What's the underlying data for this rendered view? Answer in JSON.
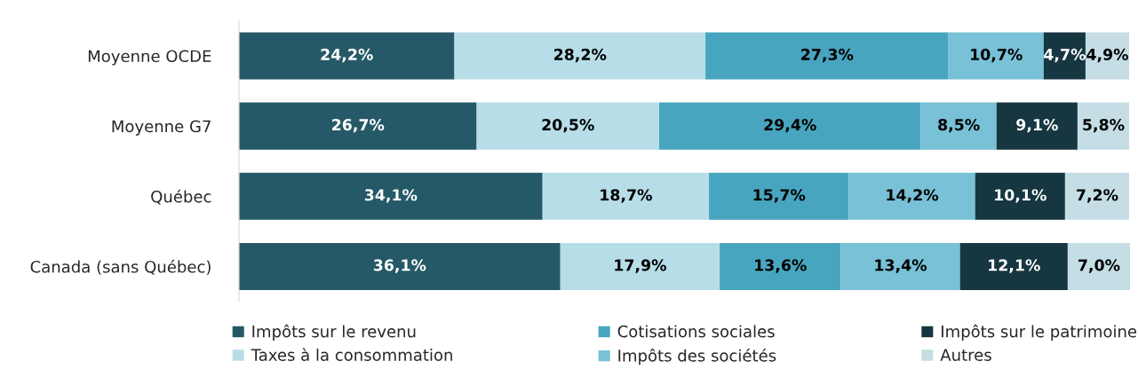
{
  "chart_data": {
    "type": "bar",
    "orientation": "horizontal",
    "stacked": true,
    "legend": "bottom",
    "categories": [
      "Moyenne OCDE",
      "Moyenne G7",
      "Québec",
      "Canada (sans Québec)"
    ],
    "series": [
      {
        "name": "Impôts sur le revenu",
        "color": "#265967",
        "values": [
          24.2,
          26.7,
          34.1,
          36.1
        ],
        "value_labels": [
          "24,2%",
          "26,7%",
          "34,1%",
          "36,1%"
        ]
      },
      {
        "name": "Taxes à la consommation",
        "color": "#b7dee8",
        "values": [
          28.2,
          20.5,
          18.7,
          17.9
        ],
        "value_labels": [
          "28,2%",
          "20,5%",
          "18,7%",
          "17,9%"
        ]
      },
      {
        "name": "Cotisations sociales",
        "color": "#48a5bf",
        "values": [
          27.3,
          29.4,
          15.7,
          13.6
        ],
        "value_labels": [
          "27,3%",
          "29,4%",
          "15,7%",
          "13,6%"
        ]
      },
      {
        "name": "Impôts des sociétés",
        "color": "#78c1d6",
        "values": [
          10.7,
          8.5,
          14.2,
          13.4
        ],
        "value_labels": [
          "10,7%",
          "8,5%",
          "14,2%",
          "13,4%"
        ]
      },
      {
        "name": "Impôts sur le patrimoine",
        "color": "#163641",
        "values": [
          4.7,
          9.1,
          10.1,
          12.1
        ],
        "value_labels": [
          "4,7%",
          "9,1%",
          "10,1%",
          "12,1%"
        ]
      },
      {
        "name": "Autres",
        "color": "#c5dde5",
        "values": [
          4.9,
          5.8,
          7.2,
          7.0
        ],
        "value_labels": [
          "4,9%",
          "5,8%",
          "7,2%",
          "7,0%"
        ]
      }
    ]
  }
}
